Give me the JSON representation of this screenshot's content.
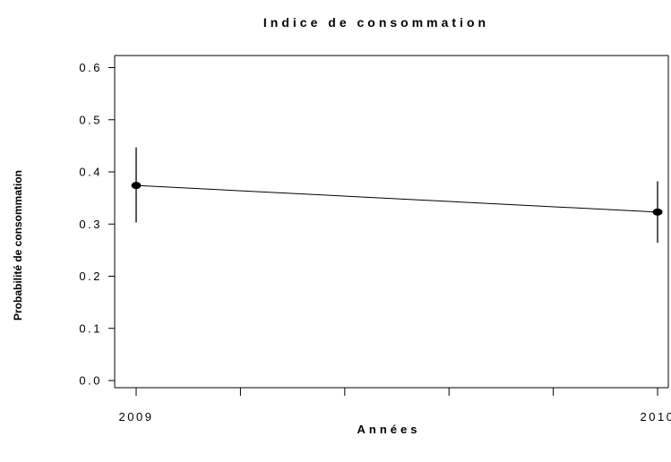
{
  "chart_data": {
    "type": "line",
    "title": "Indice de consommation",
    "xlabel": "Années",
    "ylabel": "Probabilité de consommation",
    "x_ticks": [
      "2009",
      "2010"
    ],
    "x_minor_ticks": 4,
    "y_ticks": [
      "0.0",
      "0.1",
      "0.2",
      "0.3",
      "0.4",
      "0.5",
      "0.6"
    ],
    "ylim": [
      0,
      0.6
    ],
    "grid": false,
    "legend": "none",
    "series": [
      {
        "x": [
          2009,
          2010
        ],
        "values": [
          0.374,
          0.323
        ],
        "lower": [
          0.303,
          0.264
        ],
        "upper": [
          0.447,
          0.382
        ]
      }
    ]
  }
}
